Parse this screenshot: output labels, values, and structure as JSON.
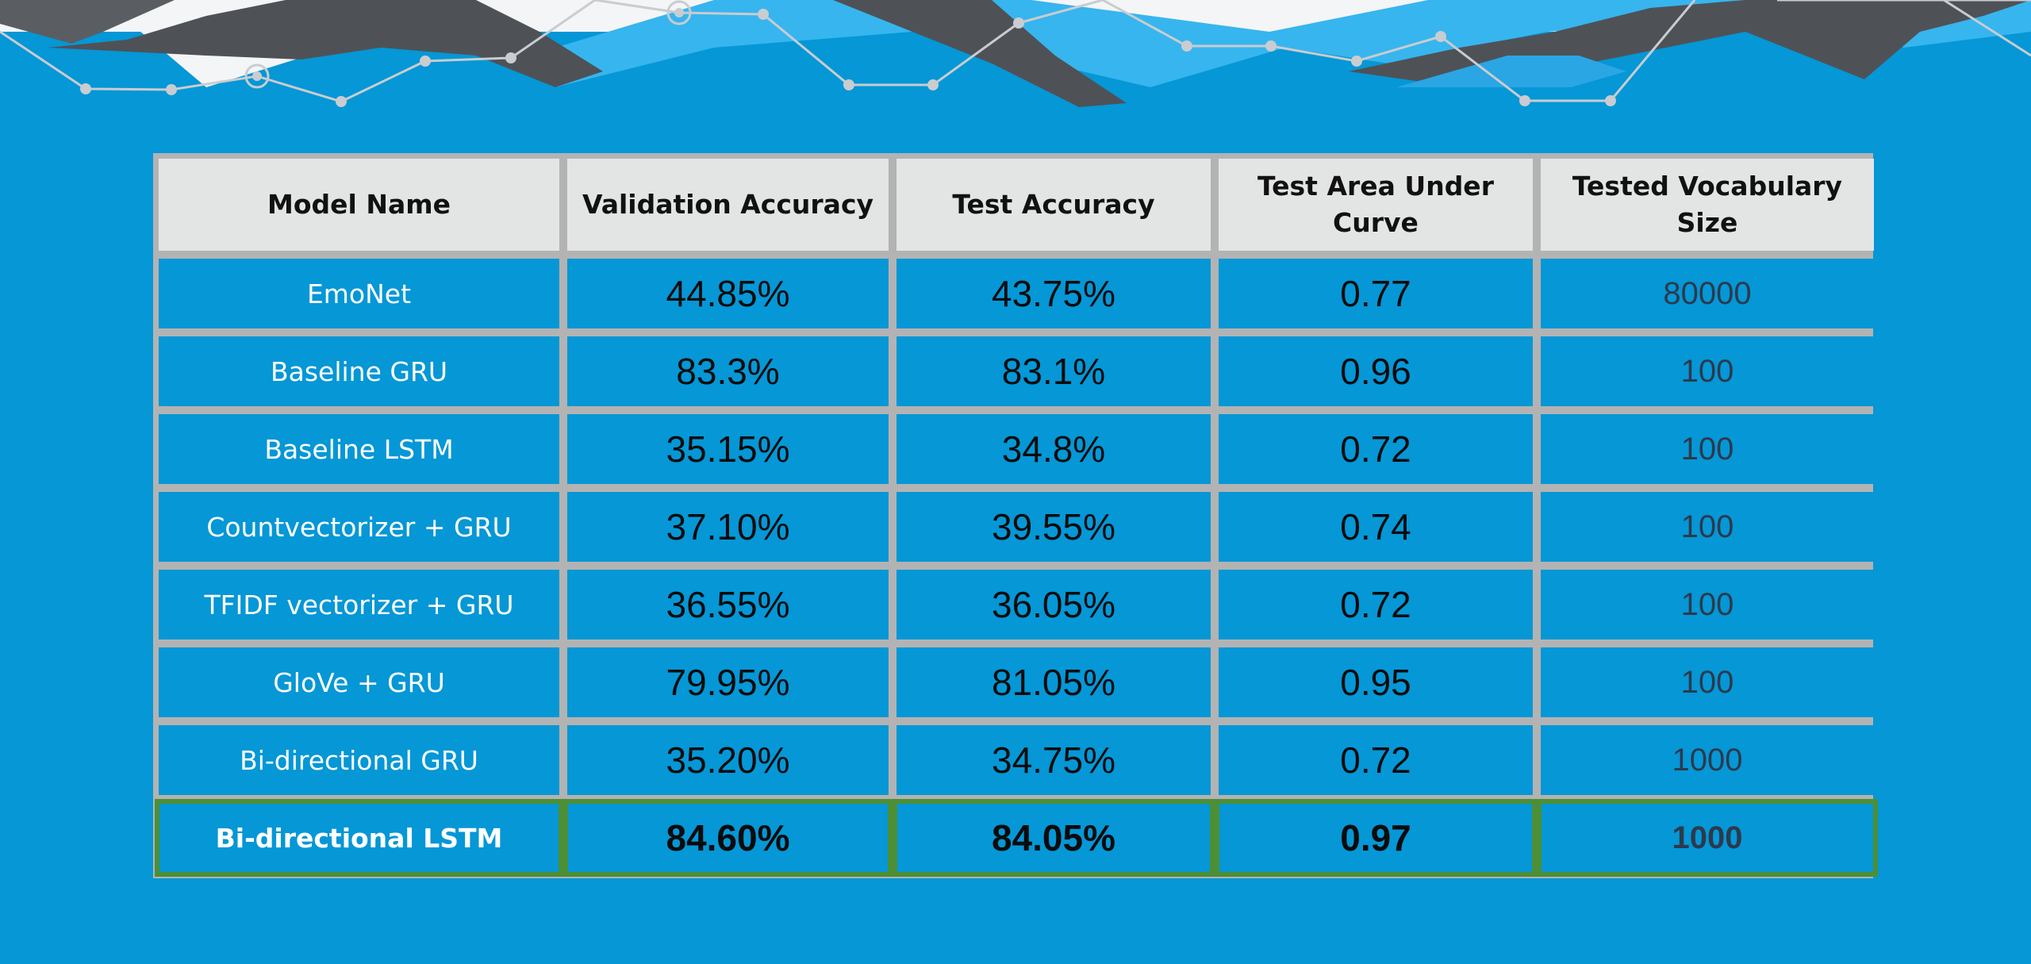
{
  "table": {
    "headers": [
      "Model Name",
      "Validation Accuracy",
      "Test Accuracy",
      "Test Area Under Curve",
      "Tested Vocabulary Size"
    ],
    "rows": [
      {
        "model": "EmoNet",
        "val_acc": "44.85%",
        "test_acc": "43.75%",
        "auc": "0.77",
        "vocab": "80000"
      },
      {
        "model": "Baseline GRU",
        "val_acc": "83.3%",
        "test_acc": "83.1%",
        "auc": "0.96",
        "vocab": "100"
      },
      {
        "model": "Baseline LSTM",
        "val_acc": "35.15%",
        "test_acc": "34.8%",
        "auc": "0.72",
        "vocab": "100"
      },
      {
        "model": "Countvectorizer + GRU",
        "val_acc": "37.10%",
        "test_acc": "39.55%",
        "auc": "0.74",
        "vocab": "100"
      },
      {
        "model": "TFIDF vectorizer + GRU",
        "val_acc": "36.55%",
        "test_acc": "36.05%",
        "auc": "0.72",
        "vocab": "100"
      },
      {
        "model": "GloVe + GRU",
        "val_acc": "79.95%",
        "test_acc": "81.05%",
        "auc": "0.95",
        "vocab": "100"
      },
      {
        "model": "Bi-directional GRU",
        "val_acc": "35.20%",
        "test_acc": "34.75%",
        "auc": "0.72",
        "vocab": "1000"
      },
      {
        "model": "Bi-directional LSTM",
        "val_acc": "84.60%",
        "test_acc": "84.05%",
        "auc": "0.97",
        "vocab": "1000"
      }
    ]
  },
  "colors": {
    "background": "#0597d6",
    "header_cell": "#e3e5e5",
    "grid": "#b3b3b3",
    "highlight_border": "#4d8f36"
  }
}
